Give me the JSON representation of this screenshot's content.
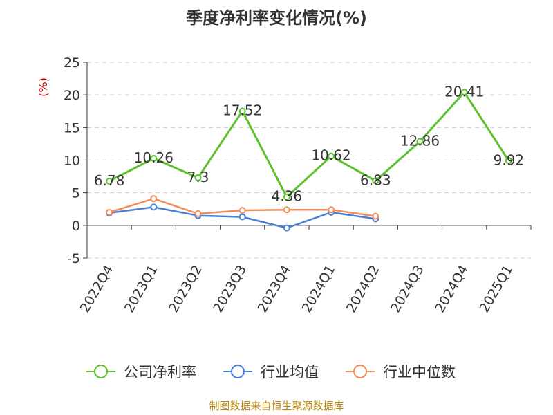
{
  "chart_data": {
    "type": "line",
    "title": "季度净利率变化情况(%)",
    "ylabel": "(%)",
    "xlabel": "",
    "categories": [
      "2022Q4",
      "2023Q1",
      "2023Q2",
      "2023Q3",
      "2023Q4",
      "2024Q1",
      "2024Q2",
      "2024Q3",
      "2024Q4",
      "2025Q1"
    ],
    "y_ticks": [
      "25",
      "20",
      "15",
      "10",
      "5",
      "0",
      "-5"
    ],
    "ylim": [
      -5,
      25
    ],
    "grid": true,
    "legend_position": "bottom",
    "series": [
      {
        "name": "公司净利率",
        "color": "#5ac02b",
        "values": [
          6.78,
          10.26,
          7.3,
          17.52,
          4.36,
          10.62,
          6.83,
          12.86,
          20.41,
          9.92
        ],
        "labels": [
          "6.78",
          "10.26",
          "7.3",
          "17.52",
          "4.36",
          "10.62",
          "6.83",
          "12.86",
          "20.41",
          "9.92"
        ]
      },
      {
        "name": "行业均值",
        "color": "#4a7fd6",
        "values": [
          1.9,
          2.8,
          1.5,
          1.3,
          -0.4,
          2.0,
          1.0,
          null,
          null,
          null
        ]
      },
      {
        "name": "行业中位数",
        "color": "#f28c5a",
        "values": [
          2.0,
          4.1,
          1.8,
          2.3,
          2.4,
          2.4,
          1.4,
          null,
          null,
          null
        ]
      }
    ],
    "source": "制图数据来自恒生聚源数据库"
  }
}
